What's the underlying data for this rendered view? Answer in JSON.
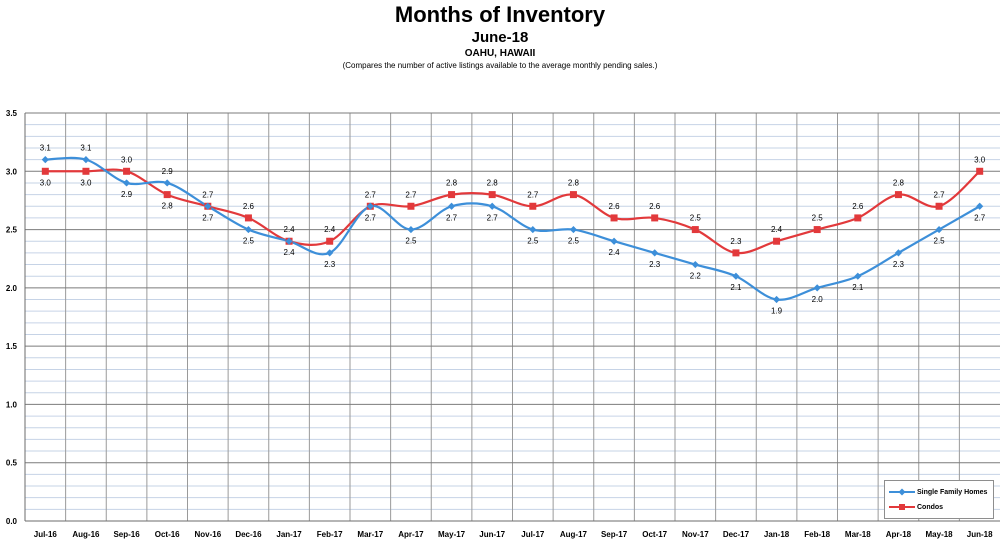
{
  "chart_data": {
    "type": "line",
    "title": "Months of Inventory",
    "subtitle": "June-18",
    "location": "OAHU, HAWAII",
    "note": "(Compares the number of active listings available to the average monthly pending sales.)",
    "categories": [
      "Jul-16",
      "Aug-16",
      "Sep-16",
      "Oct-16",
      "Nov-16",
      "Dec-16",
      "Jan-17",
      "Feb-17",
      "Mar-17",
      "Apr-17",
      "May-17",
      "Jun-17",
      "Jul-17",
      "Aug-17",
      "Sep-17",
      "Oct-17",
      "Nov-17",
      "Dec-17",
      "Jan-18",
      "Feb-18",
      "Mar-18",
      "Apr-18",
      "May-18",
      "Jun-18"
    ],
    "series": [
      {
        "name": "Single Family Homes",
        "color": "#3d8fd9",
        "marker": "diamond",
        "values": [
          3.1,
          3.1,
          2.9,
          2.9,
          2.7,
          2.5,
          2.4,
          2.3,
          2.7,
          2.5,
          2.7,
          2.7,
          2.5,
          2.5,
          2.4,
          2.3,
          2.2,
          2.1,
          1.9,
          2.0,
          2.1,
          2.3,
          2.5,
          2.7
        ]
      },
      {
        "name": "Condos",
        "color": "#e2393b",
        "marker": "square",
        "values": [
          3.0,
          3.0,
          3.0,
          2.8,
          2.7,
          2.6,
          2.4,
          2.4,
          2.7,
          2.7,
          2.8,
          2.8,
          2.7,
          2.8,
          2.6,
          2.6,
          2.5,
          2.3,
          2.4,
          2.5,
          2.6,
          2.8,
          2.7,
          3.0
        ]
      }
    ],
    "ylim": [
      0,
      3.5
    ],
    "yticks": [
      "0.0",
      "0.5",
      "1.0",
      "1.5",
      "2.0",
      "2.5",
      "3.0",
      "3.5"
    ],
    "grid": true,
    "legend_position": "bottom-right",
    "labels_sfh": [
      "3.1",
      "3.1",
      "2.9",
      "2.9",
      "2.7",
      "2.5",
      "2.4",
      "2.3",
      "2.7",
      "2.5",
      "2.7",
      "2.7",
      "2.5",
      "2.5",
      "2.4",
      "2.3",
      "2.2",
      "2.1",
      "1.9",
      "2.0",
      "2.1",
      "2.3",
      "2.5",
      "2.7"
    ],
    "labels_condos": [
      "3.0",
      "3.0",
      "3.0",
      "2.8",
      "2.7",
      "2.6",
      "2.4",
      "2.4",
      "2.7",
      "2.7",
      "2.8",
      "2.8",
      "2.7",
      "2.8",
      "2.6",
      "2.6",
      "2.5",
      "2.3",
      "2.4",
      "2.5",
      "2.6",
      "2.8",
      "2.7",
      "3.0"
    ]
  }
}
